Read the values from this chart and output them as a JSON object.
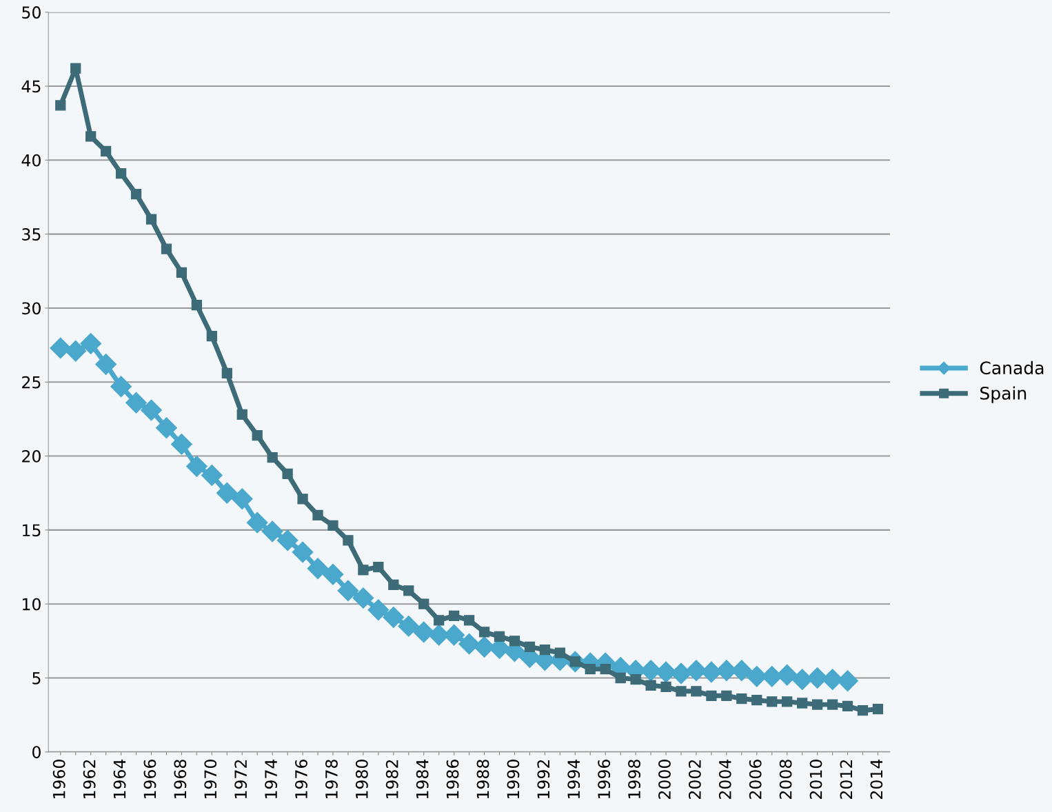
{
  "chart_data": {
    "type": "line",
    "categories": [
      "1960",
      null,
      "1962",
      null,
      "1964",
      null,
      "1966",
      null,
      "1968",
      null,
      "1970",
      null,
      "1972",
      null,
      "1974",
      null,
      "1976",
      null,
      "1978",
      null,
      "1980",
      null,
      "1982",
      null,
      "1984",
      null,
      "1986",
      null,
      "1988",
      null,
      "1990",
      null,
      "1992",
      null,
      "1994",
      null,
      "1996",
      null,
      "1998",
      null,
      "2000",
      null,
      "2002",
      null,
      "2004",
      null,
      "2006",
      null,
      "2008",
      null,
      "2010",
      null,
      "2012",
      null,
      "2014"
    ],
    "series": [
      {
        "name": "Canada",
        "color": "#4aa8cc",
        "marker": "diamond",
        "values": [
          27.3,
          27.1,
          27.6,
          26.2,
          24.7,
          23.6,
          23.1,
          21.9,
          20.8,
          19.3,
          18.7,
          17.5,
          17.1,
          15.5,
          14.9,
          14.3,
          13.5,
          12.4,
          12.0,
          10.9,
          10.4,
          9.6,
          9.1,
          8.5,
          8.1,
          7.9,
          7.9,
          7.3,
          7.1,
          7.0,
          6.8,
          6.4,
          6.2,
          6.2,
          6.1,
          6.0,
          6.0,
          5.7,
          5.5,
          5.5,
          5.4,
          5.3,
          5.5,
          5.4,
          5.5,
          5.5,
          5.1,
          5.1,
          5.2,
          4.9,
          5.0,
          4.9,
          4.8,
          null,
          null
        ]
      },
      {
        "name": "Spain",
        "color": "#3d6b78",
        "marker": "square",
        "values": [
          43.7,
          46.2,
          41.6,
          40.6,
          39.1,
          37.7,
          36.0,
          34.0,
          32.4,
          30.2,
          28.1,
          25.6,
          22.8,
          21.4,
          19.9,
          18.8,
          17.1,
          16.0,
          15.3,
          14.3,
          12.3,
          12.5,
          11.3,
          10.9,
          10.0,
          8.9,
          9.2,
          8.9,
          8.1,
          7.8,
          7.5,
          7.1,
          6.9,
          6.7,
          6.1,
          5.6,
          5.6,
          5.0,
          4.9,
          4.5,
          4.4,
          4.1,
          4.1,
          3.8,
          3.8,
          3.6,
          3.5,
          3.4,
          3.4,
          3.3,
          3.2,
          3.2,
          3.1,
          2.8,
          2.9
        ]
      }
    ],
    "ylim": [
      0,
      50
    ],
    "yticks": [
      0,
      5,
      10,
      15,
      20,
      25,
      30,
      35,
      40,
      45,
      50
    ],
    "grid": "y",
    "legend": "right",
    "line_style": "solid"
  }
}
